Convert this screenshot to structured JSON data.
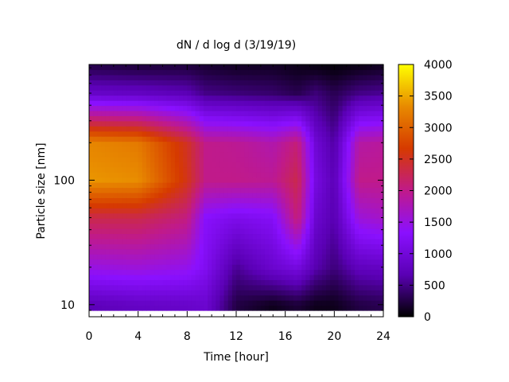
{
  "chart_data": {
    "type": "heatmap",
    "title": "dN / d log d (3/19/19)",
    "xlabel": "Time [hour]",
    "ylabel": "Particle size [nm]",
    "x_ticks": [
      0,
      4,
      8,
      12,
      16,
      20,
      24
    ],
    "x_tick_labels": [
      "0",
      "4",
      "8",
      "12",
      "16",
      "20",
      "24"
    ],
    "xlim": [
      0,
      24
    ],
    "y_scale": "log",
    "ylim": [
      8,
      850
    ],
    "y_ticks": [
      10,
      100
    ],
    "y_tick_labels": [
      "10",
      "100"
    ],
    "colorbar": {
      "min": 0,
      "max": 4000,
      "ticks": [
        0,
        500,
        1000,
        1500,
        2000,
        2500,
        3000,
        3500,
        4000
      ],
      "tick_labels": [
        "0",
        "500",
        "1000",
        "1500",
        "2000",
        "2500",
        "3000",
        "3500",
        "4000"
      ],
      "colormap": "gnuplot",
      "colors": [
        "#000000",
        "#5a00b4",
        "#8a10ff",
        "#c01a8a",
        "#d63a00",
        "#e88a00",
        "#ffff00"
      ]
    },
    "grid": false,
    "size_grid_nm": [
      10,
      20,
      50,
      100,
      200,
      500,
      800
    ],
    "time_grid_hour": [
      0,
      4,
      8,
      9.5,
      12,
      15,
      17,
      18.5,
      20,
      22,
      24
    ],
    "values": [
      [
        700,
        800,
        850,
        900,
        250,
        100,
        200,
        100,
        100,
        250,
        300
      ],
      [
        1500,
        1550,
        1450,
        1200,
        550,
        900,
        1050,
        650,
        450,
        750,
        800
      ],
      [
        2300,
        2300,
        2050,
        1300,
        1150,
        1250,
        2100,
        900,
        650,
        1550,
        1650
      ],
      [
        3400,
        3350,
        2550,
        2000,
        2000,
        1950,
        2300,
        1050,
        700,
        2000,
        2000
      ],
      [
        3300,
        3200,
        2500,
        2000,
        1950,
        1800,
        2100,
        950,
        600,
        1850,
        1900
      ],
      [
        850,
        800,
        700,
        500,
        450,
        400,
        300,
        450,
        300,
        500,
        550
      ],
      [
        300,
        250,
        250,
        200,
        150,
        150,
        100,
        80,
        50,
        100,
        150
      ]
    ]
  }
}
